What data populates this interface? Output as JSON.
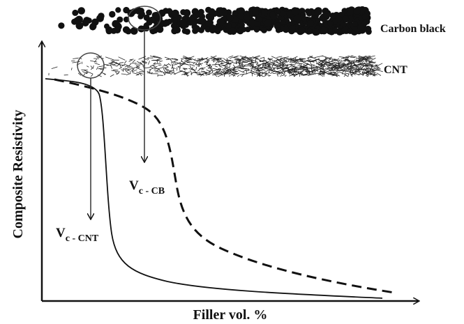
{
  "labels": {
    "carbon_black": "Carbon black",
    "cnt": "CNT",
    "y_axis": "Composite Resistivity",
    "x_axis": "Filler vol. %",
    "vc_cb": {
      "main": "V",
      "sub": "c - CB"
    },
    "vc_cnt": {
      "main": "V",
      "sub": "c - CNT"
    }
  }
}
